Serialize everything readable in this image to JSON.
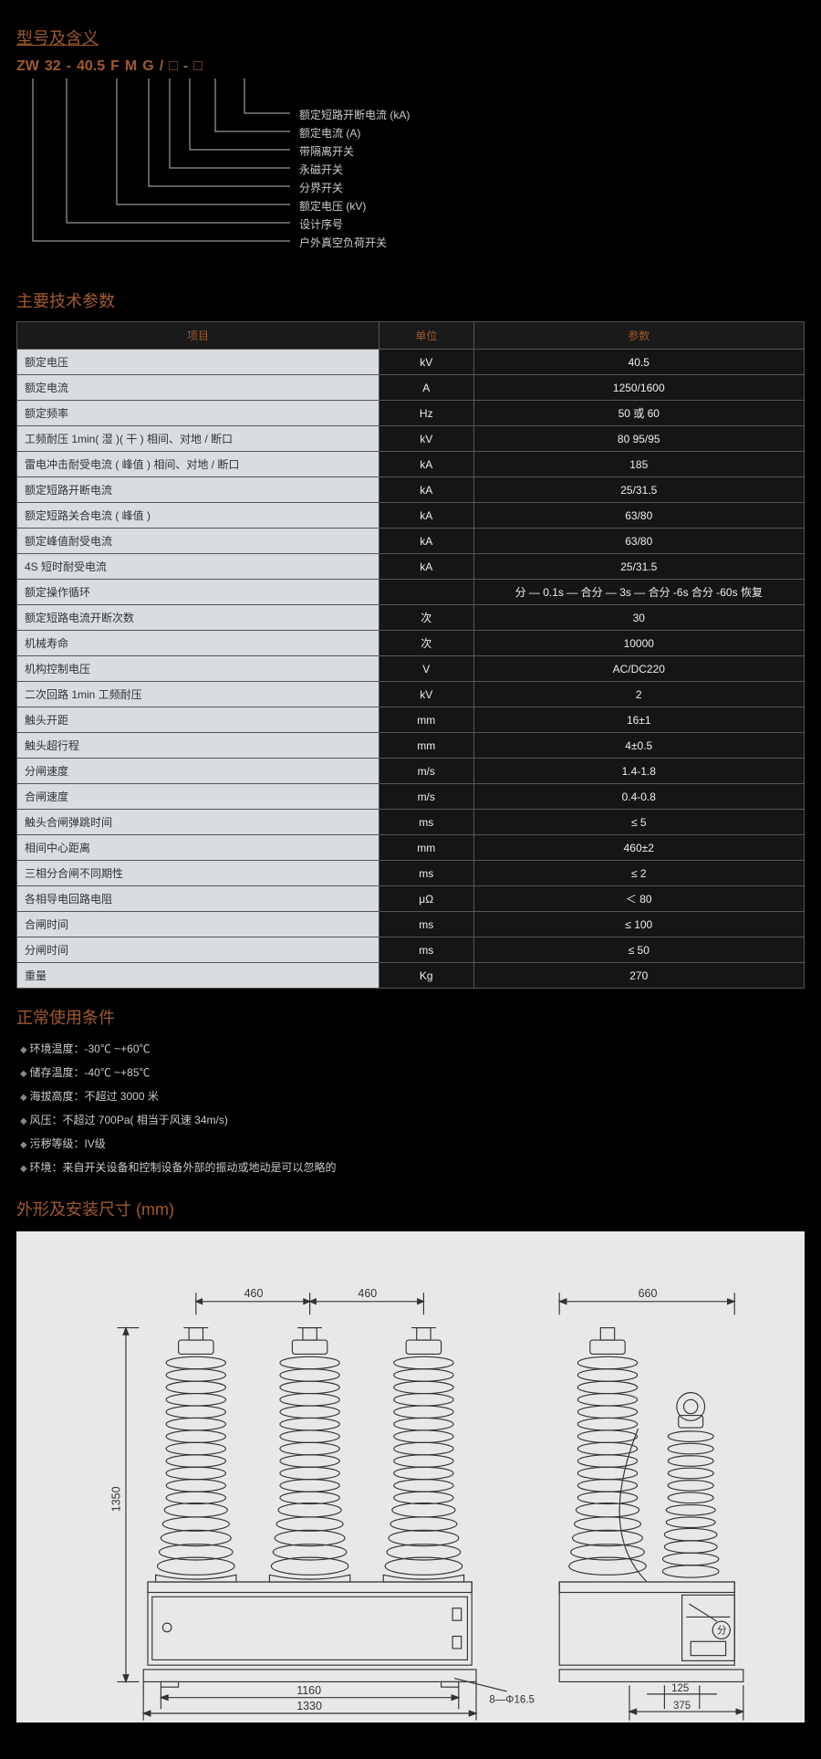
{
  "sections": {
    "model": "型号及含义",
    "spec": "主要技术参数",
    "cond": "正常使用条件",
    "dim": "外形及安装尺寸 (mm)"
  },
  "model": {
    "tokens": [
      "ZW",
      "32",
      "-",
      "40.5",
      "F",
      "M",
      "G",
      "/",
      "□",
      "-",
      "□"
    ],
    "labels": [
      "额定短路开断电流 (kA)",
      "额定电流 (A)",
      "带隔离开关",
      "永磁开关",
      "分界开关",
      "额定电压 (kV)",
      "设计序号",
      "户外真空负荷开关"
    ]
  },
  "spec": {
    "headers": [
      "项目",
      "单位",
      "参数"
    ],
    "rows": [
      [
        "额定电压",
        "kV",
        "40.5"
      ],
      [
        "额定电流",
        "A",
        "1250/1600"
      ],
      [
        "额定频率",
        "Hz",
        "50 或 60"
      ],
      [
        "工频耐压 1min( 湿 )( 干 ) 相间、对地 / 断口",
        "kV",
        "80 95/95"
      ],
      [
        "雷电冲击耐受电流 ( 峰值 ) 相间、对地 / 断口",
        "kA",
        "185"
      ],
      [
        "额定短路开断电流",
        "kA",
        "25/31.5"
      ],
      [
        "额定短路关合电流 ( 峰值 )",
        "kA",
        "63/80"
      ],
      [
        "额定峰值耐受电流",
        "kA",
        "63/80"
      ],
      [
        "4S 短时耐受电流",
        "kA",
        "25/31.5"
      ],
      [
        "额定操作循环",
        "",
        "分 — 0.1s — 合分 — 3s — 合分 -6s 合分 -60s 恢复"
      ],
      [
        "额定短路电流开断次数",
        "次",
        "30"
      ],
      [
        "机械寿命",
        "次",
        "10000"
      ],
      [
        "机构控制电压",
        "V",
        "AC/DC220"
      ],
      [
        "二次回路 1min 工频耐压",
        "kV",
        "2"
      ],
      [
        "触头开距",
        "mm",
        "16±1"
      ],
      [
        "触头超行程",
        "mm",
        "4±0.5"
      ],
      [
        "分闸速度",
        "m/s",
        "1.4-1.8"
      ],
      [
        "合闸速度",
        "m/s",
        "0.4-0.8"
      ],
      [
        "触头合闸弹跳时间",
        "ms",
        "≤ 5"
      ],
      [
        "相间中心距离",
        "mm",
        "460±2"
      ],
      [
        "三相分合闸不同期性",
        "ms",
        "≤ 2"
      ],
      [
        "各相导电回路电阻",
        "μΩ",
        "＜ 80"
      ],
      [
        "合闸时间",
        "ms",
        "≤ 100"
      ],
      [
        "分闸时间",
        "ms",
        "≤ 50"
      ],
      [
        "重量",
        "Kg",
        "270"
      ]
    ]
  },
  "conditions": [
    "环境温度：-30℃ ~+60℃",
    "储存温度：-40℃ ~+85℃",
    "海拔高度：不超过 3000 米",
    "风压：不超过 700Pa( 相当于风速 34m/s)",
    "污秽等级：IV级",
    "环境：来自开关设备和控制设备外部的振动或地动是可以忽略的"
  ],
  "drawing": {
    "background": "#e8e8e8",
    "stroke": "#333333",
    "font": "13px",
    "dims": {
      "span1": "460",
      "span2": "460",
      "span3": "660",
      "height": "1350",
      "base_inner": "1160",
      "base_outer": "1330",
      "holes": "8—Φ16.5",
      "side_small": "125",
      "side_base": "375"
    }
  }
}
